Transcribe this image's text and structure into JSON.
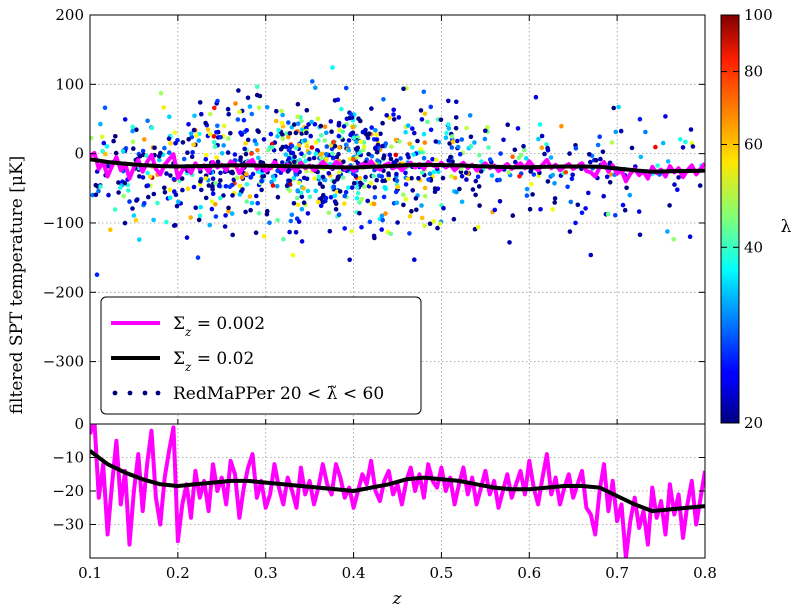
{
  "chart_data": {
    "type": "scatter",
    "ylabel": "filtered SPT temperature [μK]",
    "xlabel": "z",
    "xlim": [
      0.1,
      0.8
    ],
    "x_ticks": [
      "0.1",
      "0.2",
      "0.3",
      "0.4",
      "0.5",
      "0.6",
      "0.7",
      "0.8"
    ],
    "grid": true,
    "top_panel": {
      "ylim": [
        -390,
        200
      ],
      "y_ticks": [
        "200",
        "100",
        "0",
        "−100",
        "−200",
        "−300"
      ],
      "legend_position": "bottom-left",
      "series": [
        {
          "name": "Σ_z = 0.002",
          "label_html": "Σ<tspan font-style='italic' baseline-shift='sub' font-size='12'>z</tspan> = 0.002",
          "type": "line",
          "color": "#ff00ff",
          "x": [
            0.1,
            0.105,
            0.11,
            0.115,
            0.12,
            0.125,
            0.13,
            0.135,
            0.14,
            0.145,
            0.15,
            0.155,
            0.16,
            0.165,
            0.17,
            0.175,
            0.18,
            0.185,
            0.19,
            0.195,
            0.2,
            0.205,
            0.21,
            0.215,
            0.22,
            0.225,
            0.23,
            0.235,
            0.24,
            0.245,
            0.25,
            0.255,
            0.26,
            0.265,
            0.27,
            0.275,
            0.28,
            0.285,
            0.29,
            0.295,
            0.3,
            0.305,
            0.31,
            0.315,
            0.32,
            0.325,
            0.33,
            0.335,
            0.34,
            0.345,
            0.35,
            0.355,
            0.36,
            0.365,
            0.37,
            0.375,
            0.38,
            0.385,
            0.39,
            0.395,
            0.4,
            0.405,
            0.41,
            0.415,
            0.42,
            0.425,
            0.43,
            0.435,
            0.44,
            0.445,
            0.45,
            0.455,
            0.46,
            0.465,
            0.47,
            0.475,
            0.48,
            0.485,
            0.49,
            0.495,
            0.5,
            0.505,
            0.51,
            0.515,
            0.52,
            0.525,
            0.53,
            0.535,
            0.54,
            0.545,
            0.55,
            0.555,
            0.56,
            0.565,
            0.57,
            0.575,
            0.58,
            0.585,
            0.59,
            0.595,
            0.6,
            0.605,
            0.61,
            0.615,
            0.62,
            0.625,
            0.63,
            0.635,
            0.64,
            0.645,
            0.65,
            0.655,
            0.66,
            0.665,
            0.67,
            0.675,
            0.68,
            0.685,
            0.69,
            0.695,
            0.7,
            0.705,
            0.71,
            0.715,
            0.72,
            0.725,
            0.73,
            0.735,
            0.74,
            0.745,
            0.75,
            0.755,
            0.76,
            0.765,
            0.77,
            0.775,
            0.78,
            0.785,
            0.79,
            0.795,
            0.8
          ],
          "y": [
            -3,
            1,
            -22,
            -12,
            -33,
            -18,
            -5,
            -24,
            -14,
            -36,
            -20,
            -9,
            -26,
            -12,
            -2,
            -22,
            -30,
            -16,
            -8,
            -1,
            -35,
            -24,
            -18,
            -28,
            -14,
            -22,
            -17,
            -26,
            -12,
            -20,
            -16,
            -24,
            -11,
            -15,
            -28,
            -19,
            -13,
            -9,
            -22,
            -17,
            -25,
            -21,
            -12,
            -19,
            -24,
            -16,
            -20,
            -25,
            -13,
            -21,
            -17,
            -24,
            -19,
            -12,
            -18,
            -21,
            -12,
            -16,
            -22,
            -19,
            -25,
            -20,
            -15,
            -18,
            -11,
            -20,
            -23,
            -17,
            -14,
            -21,
            -18,
            -24,
            -17,
            -13,
            -20,
            -15,
            -22,
            -12,
            -17,
            -19,
            -13,
            -20,
            -16,
            -24,
            -18,
            -13,
            -21,
            -16,
            -24,
            -19,
            -14,
            -21,
            -17,
            -25,
            -20,
            -15,
            -22,
            -18,
            -14,
            -21,
            -11,
            -19,
            -24,
            -16,
            -9,
            -21,
            -16,
            -24,
            -19,
            -15,
            -22,
            -18,
            -14,
            -25,
            -27,
            -33,
            -20,
            -12,
            -26,
            -17,
            -29,
            -24,
            -40,
            -29,
            -22,
            -31,
            -26,
            -36,
            -19,
            -28,
            -23,
            -33,
            -18,
            -27,
            -21,
            -34,
            -24,
            -17,
            -30,
            -22,
            -14
          ]
        },
        {
          "name": "Σ_z = 0.02",
          "label_html": "Σ<tspan font-style='italic' baseline-shift='sub' font-size='12'>z</tspan> = 0.02",
          "type": "line",
          "color": "#000000",
          "x": [
            0.1,
            0.12,
            0.14,
            0.16,
            0.18,
            0.2,
            0.22,
            0.24,
            0.26,
            0.28,
            0.3,
            0.32,
            0.34,
            0.36,
            0.38,
            0.4,
            0.42,
            0.44,
            0.46,
            0.48,
            0.5,
            0.52,
            0.54,
            0.56,
            0.58,
            0.6,
            0.62,
            0.64,
            0.66,
            0.68,
            0.7,
            0.72,
            0.74,
            0.76,
            0.78,
            0.8
          ],
          "y": [
            -8,
            -12,
            -14.5,
            -16.5,
            -18,
            -18.5,
            -18,
            -17.5,
            -17,
            -17,
            -17.5,
            -18,
            -18.5,
            -19,
            -19.5,
            -20,
            -19,
            -18,
            -16.5,
            -16,
            -16.5,
            -17,
            -18,
            -19,
            -19.5,
            -19.5,
            -19,
            -18.5,
            -18.5,
            -19,
            -21.5,
            -24,
            -26,
            -25.5,
            -25,
            -24.5
          ]
        },
        {
          "name": "RedMaPPer 20 < λ̃ < 60",
          "label_html": "RedMaPPer 20 &lt; λ̃ &lt; 60",
          "type": "scatter",
          "color_by": "λ",
          "n_points": 1100
        }
      ]
    },
    "bottom_panel": {
      "ylim": [
        -40,
        0
      ],
      "y_ticks": [
        "0",
        "−10",
        "−20",
        "−30"
      ],
      "series_refs": [
        "Σ_z = 0.002",
        "Σ_z = 0.02"
      ]
    },
    "colorbar": {
      "label": "λ",
      "range": [
        20,
        100
      ],
      "scale": "log",
      "tick_labels": [
        "100",
        "80",
        "60",
        "40",
        "20"
      ],
      "tick_values": [
        100,
        80,
        60,
        40,
        20
      ],
      "colormap": "jet"
    }
  }
}
